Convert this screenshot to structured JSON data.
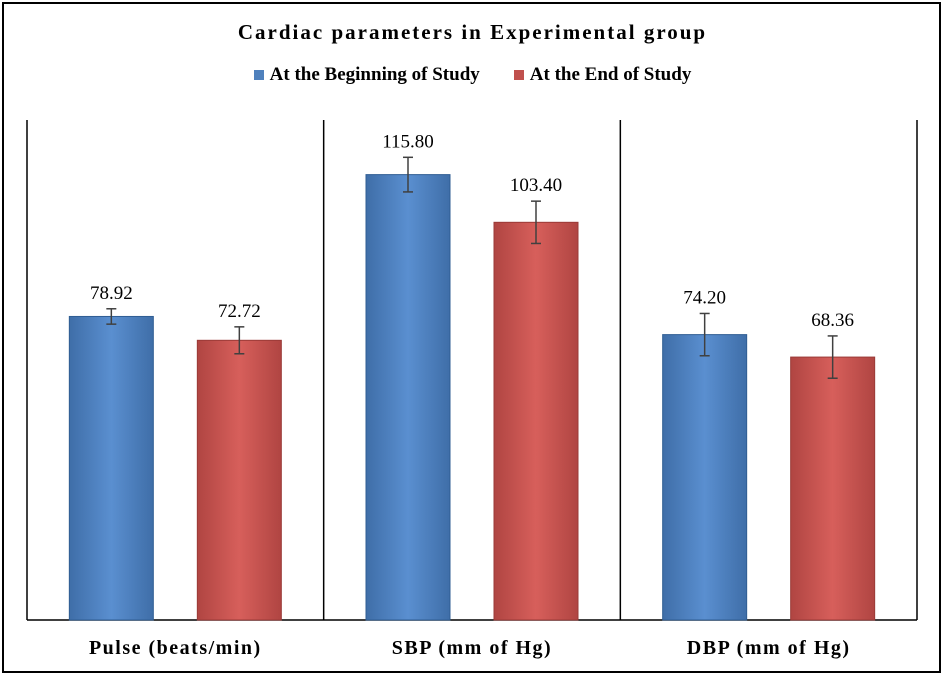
{
  "chart_data": {
    "type": "bar",
    "title": "Cardiac parameters in Experimental group",
    "categories": [
      "Pulse (beats/min)",
      "SBP (mm of Hg)",
      "DBP (mm of Hg)"
    ],
    "series": [
      {
        "name": "At the Beginning of Study",
        "values": [
          78.92,
          115.8,
          74.2
        ],
        "labels": [
          "78.92",
          "115.80",
          "74.20"
        ],
        "errors": [
          2.0,
          4.5,
          5.5
        ],
        "color": "#4f81bd"
      },
      {
        "name": "At the End of Study",
        "values": [
          72.72,
          103.4,
          68.36
        ],
        "labels": [
          "72.72",
          "103.40",
          "68.36"
        ],
        "errors": [
          3.5,
          5.5,
          5.5
        ],
        "color": "#c0504d"
      }
    ],
    "ylim": [
      0,
      130
    ],
    "grid": false,
    "legend_position": "top"
  }
}
